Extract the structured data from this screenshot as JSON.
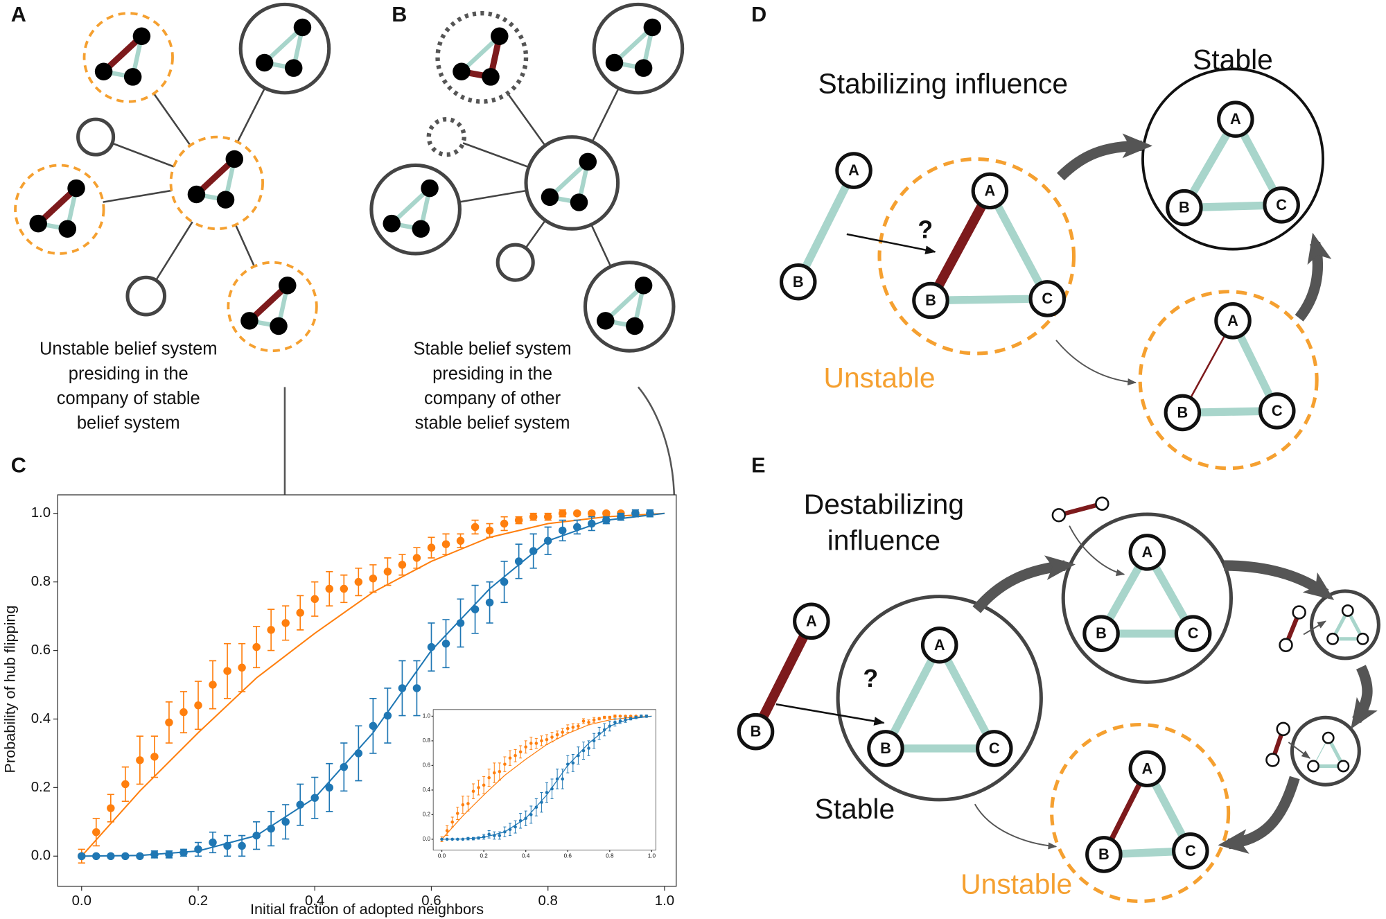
{
  "panel_labels": [
    "A",
    "B",
    "C",
    "D",
    "E"
  ],
  "panel_a": {
    "caption": [
      "Unstable belief system",
      "presiding in the",
      "company of stable",
      "belief system"
    ]
  },
  "panel_b": {
    "caption": [
      "Stable belief system",
      "presiding in the",
      "company of other",
      "stable belief system"
    ]
  },
  "panel_d": {
    "title": "Stabilizing influence",
    "stable": "Stable",
    "unstable": "Unstable",
    "query": "?"
  },
  "panel_e": {
    "title": [
      "Destabilizing",
      "influence"
    ],
    "stable": "Stable",
    "unstable": "Unstable",
    "query": "?"
  },
  "node_labels": [
    "A",
    "B",
    "C"
  ],
  "chart_data": {
    "type": "scatter",
    "x_label": "Initial fraction of adopted neighbors",
    "y_label": "Probability of hub flipping",
    "x": [
      0,
      0.025,
      0.05,
      0.075,
      0.1,
      0.125,
      0.15,
      0.175,
      0.2,
      0.225,
      0.25,
      0.275,
      0.3,
      0.325,
      0.35,
      0.375,
      0.4,
      0.425,
      0.45,
      0.475,
      0.5,
      0.525,
      0.55,
      0.575,
      0.6,
      0.625,
      0.65,
      0.675,
      0.7,
      0.725,
      0.75,
      0.775,
      0.8,
      0.825,
      0.85,
      0.875,
      0.9,
      0.925,
      0.95,
      0.975
    ],
    "series": [
      {
        "color": "#ff7f0e",
        "values": [
          0,
          0.07,
          0.14,
          0.21,
          0.28,
          0.29,
          0.39,
          0.42,
          0.44,
          0.5,
          0.54,
          0.55,
          0.61,
          0.66,
          0.68,
          0.71,
          0.75,
          0.78,
          0.78,
          0.8,
          0.81,
          0.83,
          0.85,
          0.87,
          0.9,
          0.91,
          0.92,
          0.96,
          0.95,
          0.97,
          0.98,
          0.99,
          0.99,
          1,
          1,
          1,
          1,
          1,
          1,
          1
        ],
        "errors": [
          0.02,
          0.04,
          0.04,
          0.05,
          0.07,
          0.06,
          0.06,
          0.06,
          0.07,
          0.07,
          0.08,
          0.07,
          0.06,
          0.06,
          0.05,
          0.05,
          0.05,
          0.05,
          0.04,
          0.04,
          0.04,
          0.04,
          0.03,
          0.03,
          0.03,
          0.03,
          0.02,
          0.02,
          0.02,
          0.02,
          0.01,
          0.01,
          0.01,
          0.01,
          0.005,
          0.005,
          0.005,
          0.005,
          0.005,
          0.005
        ]
      },
      {
        "color": "#1f77b4",
        "values": [
          0,
          0,
          0,
          0,
          0,
          0.005,
          0.005,
          0.01,
          0.02,
          0.04,
          0.03,
          0.03,
          0.06,
          0.08,
          0.1,
          0.15,
          0.17,
          0.2,
          0.26,
          0.3,
          0.38,
          0.41,
          0.49,
          0.49,
          0.61,
          0.62,
          0.68,
          0.72,
          0.74,
          0.8,
          0.86,
          0.89,
          0.92,
          0.95,
          0.96,
          0.97,
          0.98,
          0.99,
          1,
          1
        ],
        "errors": [
          0,
          0,
          0,
          0,
          0,
          0.01,
          0.01,
          0.01,
          0.02,
          0.03,
          0.03,
          0.03,
          0.04,
          0.05,
          0.05,
          0.06,
          0.06,
          0.07,
          0.07,
          0.08,
          0.08,
          0.08,
          0.08,
          0.08,
          0.07,
          0.07,
          0.07,
          0.07,
          0.06,
          0.06,
          0.05,
          0.05,
          0.04,
          0.03,
          0.02,
          0.02,
          0.01,
          0.01,
          0.01,
          0.01
        ]
      }
    ],
    "fits": [
      {
        "color": "#ff7f0e",
        "x": [
          0,
          0.1,
          0.2,
          0.3,
          0.4,
          0.5,
          0.6,
          0.7,
          0.8,
          0.9,
          1.0
        ],
        "values": [
          0,
          0.19,
          0.36,
          0.52,
          0.65,
          0.77,
          0.86,
          0.93,
          0.97,
          0.99,
          1
        ]
      },
      {
        "color": "#1f77b4",
        "x": [
          0,
          0.1,
          0.2,
          0.3,
          0.4,
          0.5,
          0.6,
          0.7,
          0.8,
          0.9,
          1.0
        ],
        "values": [
          0,
          0.002,
          0.015,
          0.06,
          0.17,
          0.36,
          0.6,
          0.78,
          0.92,
          0.98,
          1
        ]
      }
    ],
    "xlim": [
      -0.041,
      1.02
    ],
    "ylim": [
      -0.088,
      1.054
    ],
    "xticks": [
      {
        "value": 0,
        "label": "0.0"
      },
      0.2,
      0.4,
      0.6,
      0.8,
      {
        "value": 1,
        "label": "1.0"
      }
    ],
    "yticks": [
      {
        "value": 0,
        "label": "0.0"
      },
      0.2,
      0.4,
      0.6,
      0.8,
      {
        "value": 1,
        "label": "1.0"
      }
    ],
    "inset": true
  }
}
